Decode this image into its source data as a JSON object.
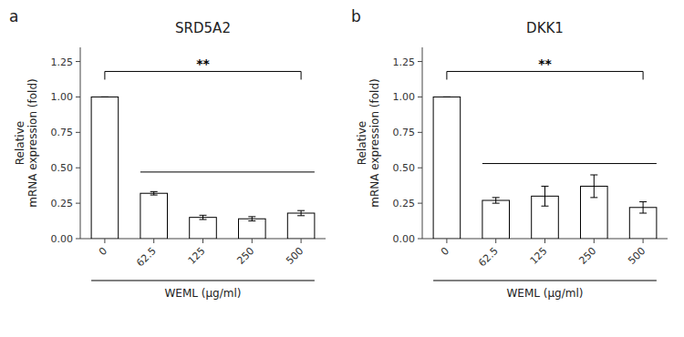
{
  "chart_data": [
    {
      "type": "bar",
      "title": "SRD5A2",
      "categories": [
        "0",
        "62.5",
        "125",
        "250",
        "500"
      ],
      "values": [
        1.0,
        0.32,
        0.15,
        0.14,
        0.18
      ],
      "errors": [
        0.0,
        0.012,
        0.015,
        0.015,
        0.018
      ],
      "color": "#ffffff",
      "ylabel": "Relative\nmRNA expression (fold)",
      "xlabel": "WEML (μg/ml)",
      "ylim": [
        0,
        1.35
      ],
      "yticks": [
        {
          "value": 0.0,
          "label": "0.00"
        },
        {
          "value": 0.25,
          "label": "0.25"
        },
        {
          "value": 0.5,
          "label": "0.50"
        },
        {
          "value": 0.75,
          "label": "0.75"
        },
        {
          "value": 1.0,
          "label": "1.00"
        },
        {
          "value": 1.25,
          "label": "1.25"
        }
      ],
      "grid": false,
      "annotations": [
        {
          "type": "panel_label",
          "text": "a"
        },
        {
          "type": "bracket",
          "text": "**",
          "y": 1.18,
          "from": "0",
          "to": "500"
        },
        {
          "type": "hline",
          "y": 0.47,
          "from": "62.5",
          "to": "500"
        }
      ]
    },
    {
      "type": "bar",
      "title": "DKK1",
      "categories": [
        "0",
        "62.5",
        "125",
        "250",
        "500"
      ],
      "values": [
        1.0,
        0.27,
        0.3,
        0.37,
        0.22
      ],
      "errors": [
        0.0,
        0.02,
        0.07,
        0.08,
        0.04
      ],
      "color": "#ffffff",
      "ylabel": "Relative\nmRNA expression (fold)",
      "xlabel": "WEML (μg/ml)",
      "ylim": [
        0,
        1.35
      ],
      "yticks": [
        {
          "value": 0.0,
          "label": "0.00"
        },
        {
          "value": 0.25,
          "label": "0.25"
        },
        {
          "value": 0.5,
          "label": "0.50"
        },
        {
          "value": 0.75,
          "label": "0.75"
        },
        {
          "value": 1.0,
          "label": "1.00"
        },
        {
          "value": 1.25,
          "label": "1.25"
        }
      ],
      "grid": false,
      "annotations": [
        {
          "type": "panel_label",
          "text": "b"
        },
        {
          "type": "bracket",
          "text": "**",
          "y": 1.18,
          "from": "0",
          "to": "500"
        },
        {
          "type": "hline",
          "y": 0.53,
          "from": "62.5",
          "to": "500"
        }
      ]
    }
  ]
}
